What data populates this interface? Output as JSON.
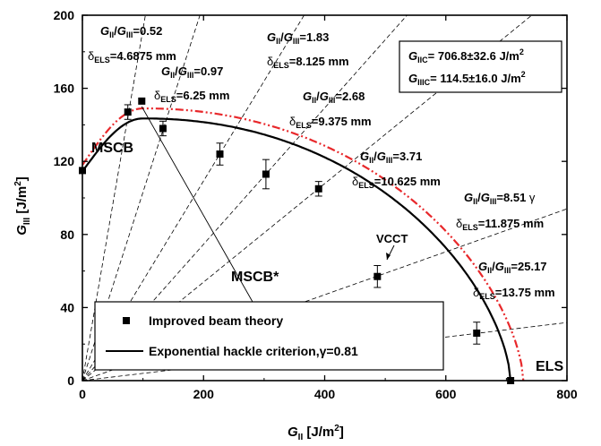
{
  "chart_data": {
    "type": "scatter",
    "xlabel": "G_II [J/m^2]",
    "ylabel": "G_III [J/m^2]",
    "xlim": [
      0,
      800
    ],
    "ylim": [
      0,
      200
    ],
    "xticks": [
      "0",
      "200",
      "400",
      "600",
      "800"
    ],
    "yticks": [
      "0",
      "40",
      "80",
      "120",
      "160",
      "200"
    ],
    "series": [
      {
        "name": "Improved beam theory",
        "marker": "square",
        "color": "#000000",
        "points": [
          {
            "x": 0,
            "y": 115,
            "err": 0
          },
          {
            "x": 75,
            "y": 147,
            "err": 4
          },
          {
            "x": 98,
            "y": 153,
            "err": 0
          },
          {
            "x": 133,
            "y": 138,
            "err": 4
          },
          {
            "x": 227,
            "y": 124,
            "err": 6
          },
          {
            "x": 303,
            "y": 113,
            "err": 8
          },
          {
            "x": 390,
            "y": 105,
            "err": 4
          },
          {
            "x": 487,
            "y": 57,
            "err": 6
          },
          {
            "x": 651,
            "y": 26,
            "err": 6
          },
          {
            "x": 707,
            "y": 0,
            "err": 0
          }
        ]
      },
      {
        "name": "Exponential hackle criterion,γ=0.81",
        "type": "line",
        "color": "#000000",
        "GIIc": 706.8,
        "GIIIc": 114.5,
        "gamma": 0.81
      },
      {
        "name": "VCCT",
        "type": "line",
        "style": "dash-dot",
        "color": "#e8282b"
      }
    ],
    "mode_ratio_lines": [
      {
        "ratio": "0.52",
        "delta": "4.6875 mm"
      },
      {
        "ratio": "0.97",
        "delta": "6.25 mm"
      },
      {
        "ratio": "1.83",
        "delta": "8.125 mm"
      },
      {
        "ratio": "2.68",
        "delta": "9.375 mm"
      },
      {
        "ratio": "3.71",
        "delta": "10.625 mm"
      },
      {
        "ratio": "8.51",
        "delta": "11.875 mm"
      },
      {
        "ratio": "25.17",
        "delta": "13.75 mm"
      }
    ],
    "labels": {
      "GIIc": "706.8±32.6 J/m",
      "GIIIc": "114.5±16.0 J/m",
      "msc_b": "MSCB",
      "msc_b_star": "MSCB*",
      "vcct": "VCCT",
      "els": "ELS",
      "gamma_mark": "γ"
    },
    "grid": false,
    "legend": "bottom-left",
    "legend_entries": [
      "Improved beam theory",
      "Exponential hackle criterion,γ=0.81"
    ]
  }
}
